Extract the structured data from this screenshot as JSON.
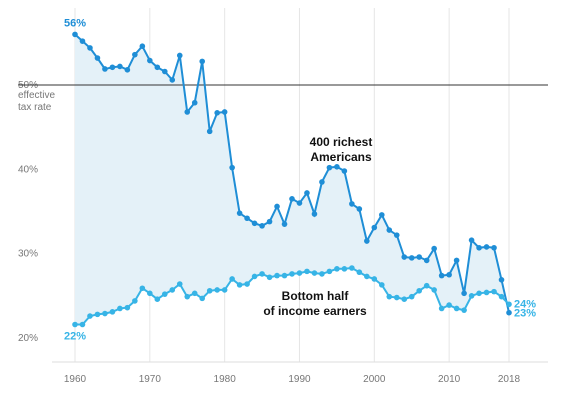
{
  "chart_data": {
    "type": "line",
    "title": "",
    "xlabel": "",
    "ylabel": "",
    "xlim": [
      1955,
      2023
    ],
    "ylim": [
      17,
      59
    ],
    "x_ticks": [
      "1960",
      "1970",
      "1980",
      "1990",
      "2000",
      "2010",
      "2018"
    ],
    "y_ticks": [
      {
        "value": 20,
        "label": "20%"
      },
      {
        "value": 30,
        "label": "30%"
      },
      {
        "value": 40,
        "label": "40%"
      },
      {
        "value": 50,
        "label": "50%"
      }
    ],
    "y50_note": [
      "effective",
      "tax rate"
    ],
    "grid": "vertical",
    "shaded_between_series": true,
    "colors": {
      "top400": "#1f8ed6",
      "bottom_half": "#37b4e6",
      "fill": "#e4f1f8",
      "grid": "#e6e6e6",
      "baseline_50": "#333333",
      "tick_text": "#777777"
    },
    "series": [
      {
        "name": "400 richest Americans",
        "x": [
          1960,
          1961,
          1962,
          1963,
          1964,
          1965,
          1966,
          1967,
          1968,
          1969,
          1970,
          1971,
          1972,
          1973,
          1974,
          1975,
          1976,
          1977,
          1978,
          1979,
          1980,
          1981,
          1982,
          1983,
          1984,
          1985,
          1986,
          1987,
          1988,
          1989,
          1990,
          1991,
          1992,
          1993,
          1994,
          1995,
          1996,
          1997,
          1998,
          1999,
          2000,
          2001,
          2002,
          2003,
          2004,
          2005,
          2006,
          2007,
          2008,
          2009,
          2010,
          2011,
          2012,
          2013,
          2014,
          2015,
          2016,
          2017,
          2018
        ],
        "values": [
          56.0,
          55.2,
          54.4,
          53.2,
          51.9,
          52.1,
          52.2,
          51.8,
          53.6,
          54.6,
          52.9,
          52.1,
          51.6,
          50.6,
          53.5,
          46.8,
          47.9,
          52.8,
          44.5,
          46.7,
          46.8,
          40.2,
          34.8,
          34.2,
          33.6,
          33.3,
          33.8,
          35.6,
          33.5,
          36.5,
          36.0,
          37.2,
          34.7,
          38.5,
          40.2,
          40.3,
          39.8,
          35.9,
          35.3,
          31.5,
          33.1,
          34.6,
          32.8,
          32.2,
          29.6,
          29.5,
          29.6,
          29.2,
          30.6,
          27.4,
          27.5,
          29.2,
          25.3,
          31.6,
          30.7,
          30.8,
          30.7,
          26.9,
          23.0
        ]
      },
      {
        "name": "Bottom half of income earners",
        "x": [
          1960,
          1961,
          1962,
          1963,
          1964,
          1965,
          1966,
          1967,
          1968,
          1969,
          1970,
          1971,
          1972,
          1973,
          1974,
          1975,
          1976,
          1977,
          1978,
          1979,
          1980,
          1981,
          1982,
          1983,
          1984,
          1985,
          1986,
          1987,
          1988,
          1989,
          1990,
          1991,
          1992,
          1993,
          1994,
          1995,
          1996,
          1997,
          1998,
          1999,
          2000,
          2001,
          2002,
          2003,
          2004,
          2005,
          2006,
          2007,
          2008,
          2009,
          2010,
          2011,
          2012,
          2013,
          2014,
          2015,
          2016,
          2017,
          2018
        ],
        "values": [
          21.6,
          21.6,
          22.6,
          22.8,
          22.9,
          23.1,
          23.5,
          23.6,
          24.4,
          25.9,
          25.3,
          24.6,
          25.2,
          25.7,
          26.4,
          24.9,
          25.3,
          24.7,
          25.6,
          25.7,
          25.7,
          27.0,
          26.3,
          26.4,
          27.3,
          27.6,
          27.2,
          27.4,
          27.4,
          27.6,
          27.7,
          27.9,
          27.7,
          27.6,
          27.9,
          28.2,
          28.2,
          28.3,
          27.8,
          27.3,
          27.0,
          26.3,
          24.9,
          24.8,
          24.6,
          24.9,
          25.6,
          26.2,
          25.7,
          23.5,
          23.9,
          23.5,
          23.3,
          25.0,
          25.3,
          25.4,
          25.5,
          24.9,
          24.0
        ]
      }
    ],
    "annotations": [
      {
        "target": "top400",
        "lines": [
          "400 richest",
          "Americans"
        ]
      },
      {
        "target": "bottom_half",
        "lines": [
          "Bottom half",
          "of income earners"
        ]
      }
    ],
    "end_labels": {
      "top400_start": "56%",
      "top400_end": "23%",
      "bottom_start": "22%",
      "bottom_end": "24%"
    }
  }
}
